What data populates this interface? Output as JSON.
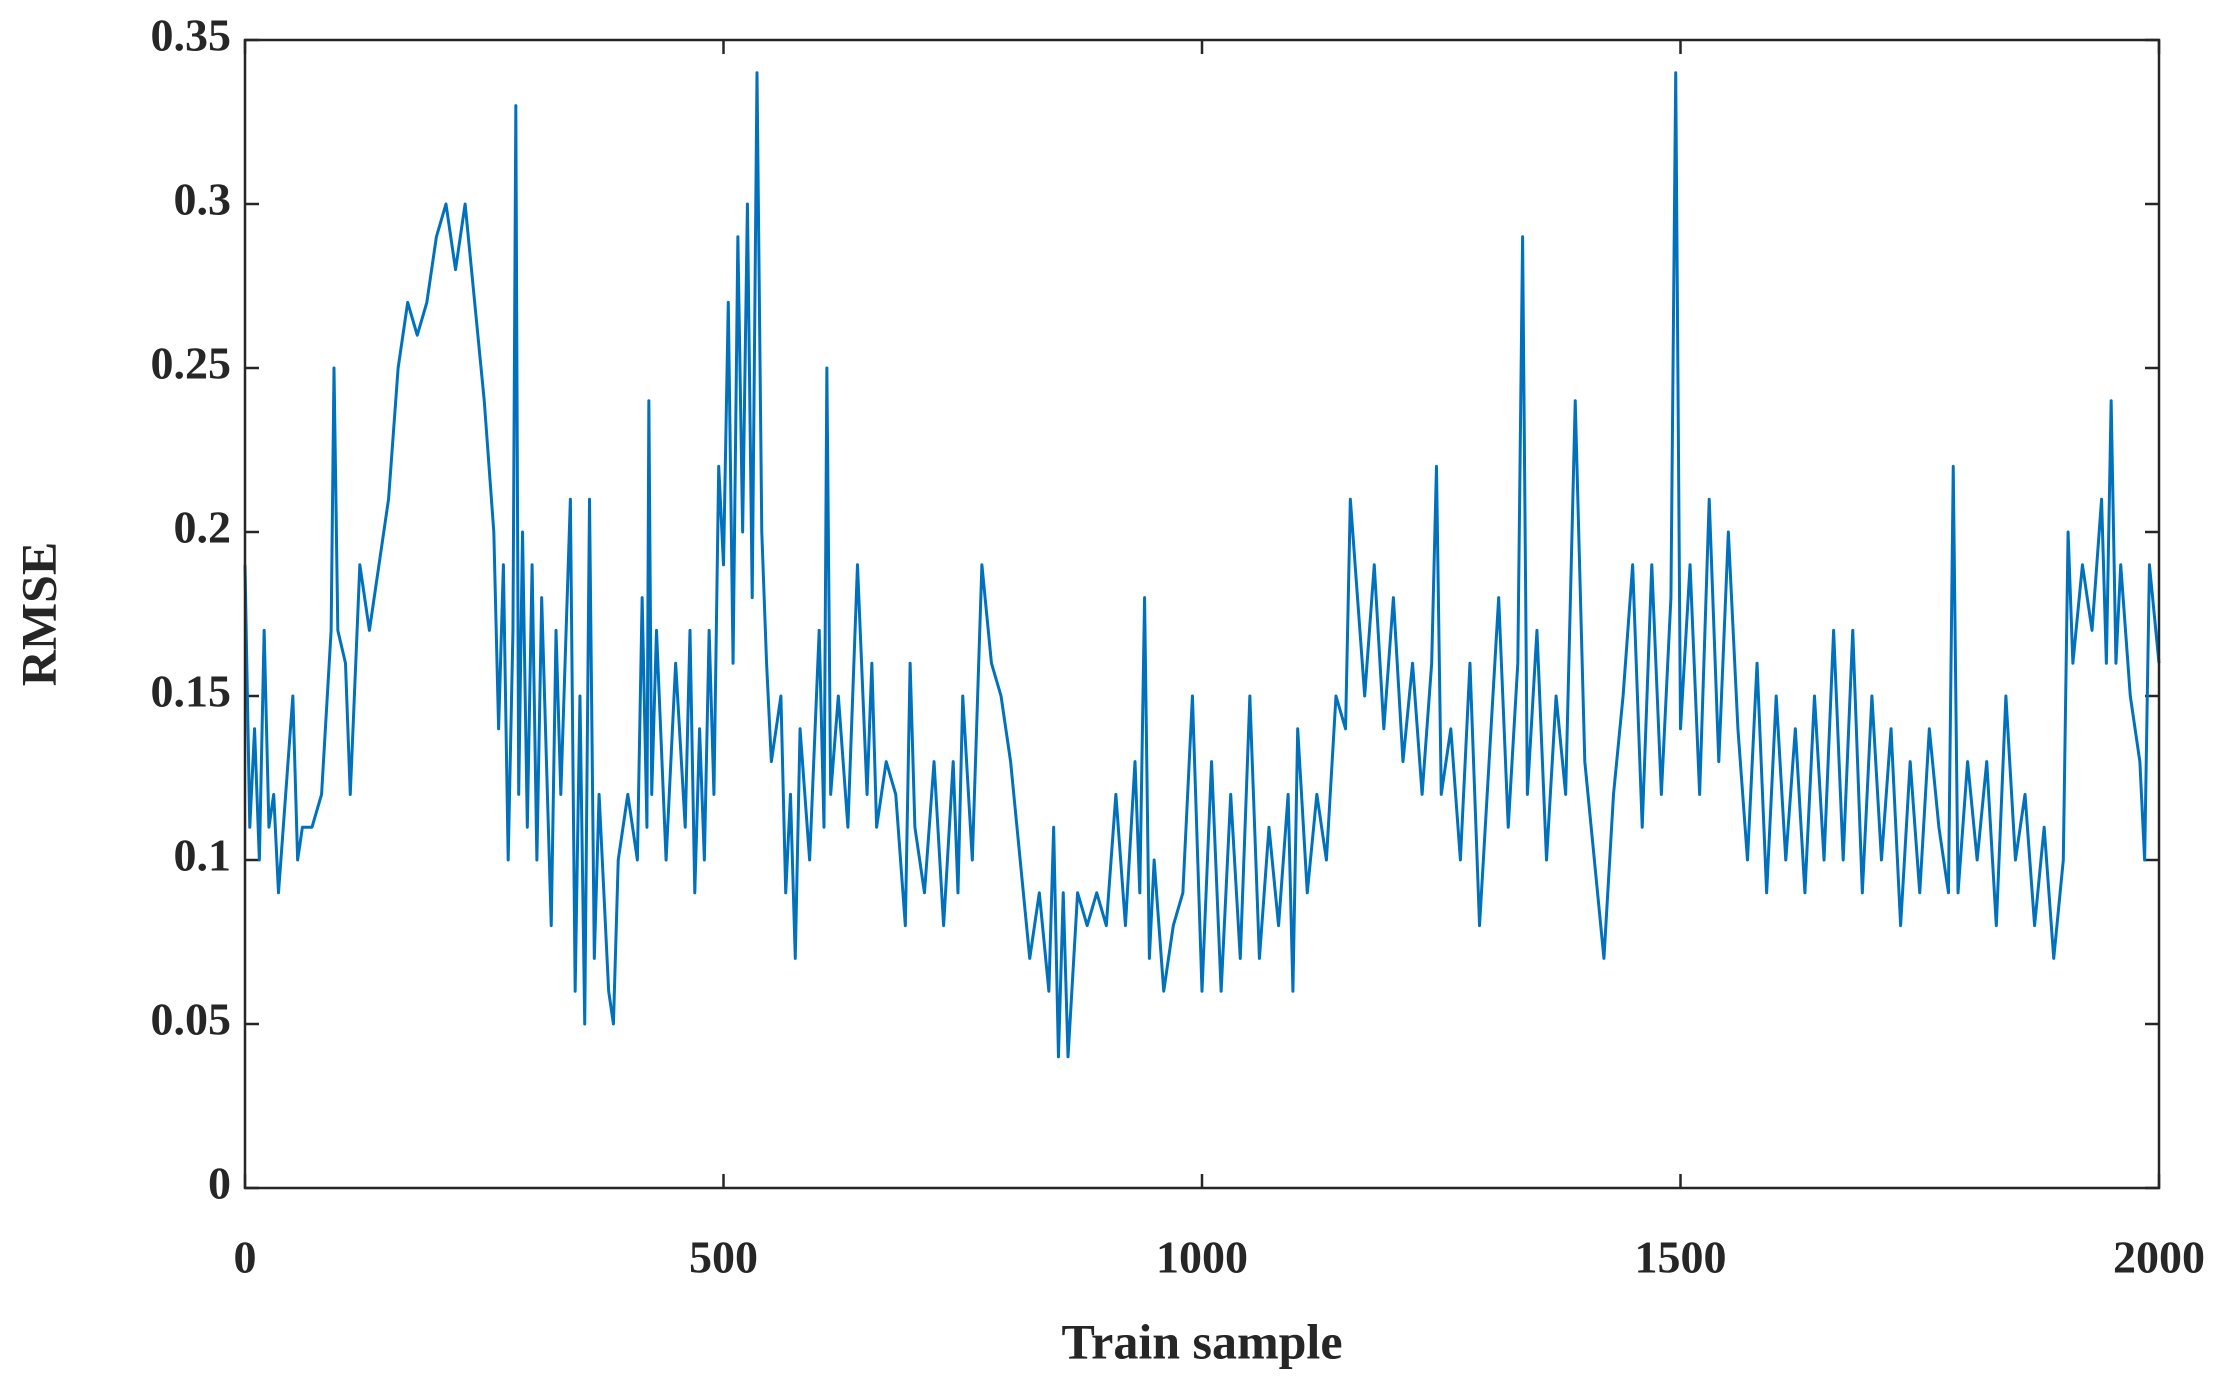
{
  "chart_data": {
    "type": "line",
    "xlabel": "Train sample",
    "ylabel": "RMSE",
    "color": "#0072bd",
    "xlim": [
      0,
      2000
    ],
    "xticks": [
      0,
      500,
      1000,
      1500,
      2000
    ],
    "ylim": [
      0,
      0.35
    ],
    "yticks": [
      0,
      0.05,
      0.1,
      0.15,
      0.2,
      0.25,
      0.3,
      0.35
    ],
    "grid": false,
    "x": [
      0,
      5,
      10,
      15,
      20,
      25,
      30,
      35,
      40,
      50,
      55,
      60,
      70,
      80,
      90,
      93,
      97,
      105,
      110,
      120,
      130,
      140,
      150,
      160,
      170,
      180,
      190,
      200,
      210,
      220,
      230,
      240,
      250,
      260,
      265,
      270,
      275,
      280,
      283,
      286,
      290,
      295,
      300,
      305,
      310,
      320,
      325,
      330,
      340,
      345,
      350,
      355,
      360,
      365,
      370,
      380,
      385,
      390,
      400,
      410,
      415,
      420,
      422,
      425,
      430,
      440,
      450,
      460,
      465,
      470,
      475,
      480,
      485,
      490,
      495,
      500,
      505,
      510,
      515,
      520,
      525,
      530,
      535,
      540,
      545,
      550,
      560,
      565,
      570,
      575,
      580,
      590,
      600,
      605,
      608,
      612,
      620,
      630,
      640,
      650,
      655,
      660,
      670,
      680,
      690,
      695,
      700,
      710,
      720,
      730,
      740,
      745,
      750,
      760,
      770,
      780,
      790,
      800,
      810,
      820,
      830,
      840,
      845,
      850,
      855,
      860,
      870,
      880,
      890,
      900,
      910,
      920,
      930,
      935,
      940,
      945,
      950,
      960,
      970,
      980,
      990,
      1000,
      1010,
      1020,
      1030,
      1040,
      1050,
      1060,
      1070,
      1080,
      1090,
      1095,
      1100,
      1110,
      1120,
      1130,
      1140,
      1150,
      1155,
      1160,
      1170,
      1180,
      1190,
      1200,
      1210,
      1220,
      1230,
      1240,
      1245,
      1250,
      1260,
      1270,
      1280,
      1290,
      1300,
      1310,
      1320,
      1330,
      1335,
      1340,
      1350,
      1360,
      1370,
      1380,
      1390,
      1400,
      1410,
      1420,
      1430,
      1440,
      1450,
      1460,
      1470,
      1480,
      1490,
      1495,
      1500,
      1510,
      1520,
      1530,
      1540,
      1550,
      1560,
      1570,
      1580,
      1590,
      1600,
      1610,
      1620,
      1630,
      1640,
      1650,
      1660,
      1670,
      1680,
      1690,
      1700,
      1710,
      1720,
      1730,
      1740,
      1750,
      1760,
      1770,
      1780,
      1785,
      1790,
      1800,
      1810,
      1820,
      1830,
      1840,
      1850,
      1860,
      1870,
      1880,
      1890,
      1900,
      1905,
      1910,
      1920,
      1930,
      1940,
      1945,
      1950,
      1955,
      1960,
      1970,
      1980,
      1985,
      1990,
      2000
    ],
    "values": [
      0.19,
      0.11,
      0.14,
      0.1,
      0.17,
      0.11,
      0.12,
      0.09,
      0.11,
      0.15,
      0.1,
      0.11,
      0.11,
      0.12,
      0.17,
      0.25,
      0.17,
      0.16,
      0.12,
      0.19,
      0.17,
      0.19,
      0.21,
      0.25,
      0.27,
      0.26,
      0.27,
      0.29,
      0.3,
      0.28,
      0.3,
      0.27,
      0.24,
      0.2,
      0.14,
      0.19,
      0.1,
      0.17,
      0.33,
      0.12,
      0.2,
      0.11,
      0.19,
      0.1,
      0.18,
      0.08,
      0.17,
      0.12,
      0.21,
      0.06,
      0.15,
      0.05,
      0.21,
      0.07,
      0.12,
      0.06,
      0.05,
      0.1,
      0.12,
      0.1,
      0.18,
      0.11,
      0.24,
      0.12,
      0.17,
      0.1,
      0.16,
      0.11,
      0.17,
      0.09,
      0.14,
      0.1,
      0.17,
      0.12,
      0.22,
      0.19,
      0.27,
      0.16,
      0.29,
      0.2,
      0.3,
      0.18,
      0.34,
      0.2,
      0.16,
      0.13,
      0.15,
      0.09,
      0.12,
      0.07,
      0.14,
      0.1,
      0.17,
      0.11,
      0.25,
      0.12,
      0.15,
      0.11,
      0.19,
      0.12,
      0.16,
      0.11,
      0.13,
      0.12,
      0.08,
      0.16,
      0.11,
      0.09,
      0.13,
      0.08,
      0.13,
      0.09,
      0.15,
      0.1,
      0.19,
      0.16,
      0.15,
      0.13,
      0.1,
      0.07,
      0.09,
      0.06,
      0.11,
      0.04,
      0.09,
      0.04,
      0.09,
      0.08,
      0.09,
      0.08,
      0.12,
      0.08,
      0.13,
      0.09,
      0.18,
      0.07,
      0.1,
      0.06,
      0.08,
      0.09,
      0.15,
      0.06,
      0.13,
      0.06,
      0.12,
      0.07,
      0.15,
      0.07,
      0.11,
      0.08,
      0.12,
      0.06,
      0.14,
      0.09,
      0.12,
      0.1,
      0.15,
      0.14,
      0.21,
      0.19,
      0.15,
      0.19,
      0.14,
      0.18,
      0.13,
      0.16,
      0.12,
      0.16,
      0.22,
      0.12,
      0.14,
      0.1,
      0.16,
      0.08,
      0.13,
      0.18,
      0.11,
      0.16,
      0.29,
      0.12,
      0.17,
      0.1,
      0.15,
      0.12,
      0.24,
      0.13,
      0.1,
      0.07,
      0.12,
      0.15,
      0.19,
      0.11,
      0.19,
      0.12,
      0.18,
      0.34,
      0.14,
      0.19,
      0.12,
      0.21,
      0.13,
      0.2,
      0.14,
      0.1,
      0.16,
      0.09,
      0.15,
      0.1,
      0.14,
      0.09,
      0.15,
      0.1,
      0.17,
      0.1,
      0.17,
      0.09,
      0.15,
      0.1,
      0.14,
      0.08,
      0.13,
      0.09,
      0.14,
      0.11,
      0.09,
      0.22,
      0.09,
      0.13,
      0.1,
      0.13,
      0.08,
      0.15,
      0.1,
      0.12,
      0.08,
      0.11,
      0.07,
      0.1,
      0.2,
      0.16,
      0.19,
      0.17,
      0.21,
      0.16,
      0.24,
      0.16,
      0.19,
      0.15,
      0.13,
      0.1,
      0.19,
      0.16
    ]
  }
}
